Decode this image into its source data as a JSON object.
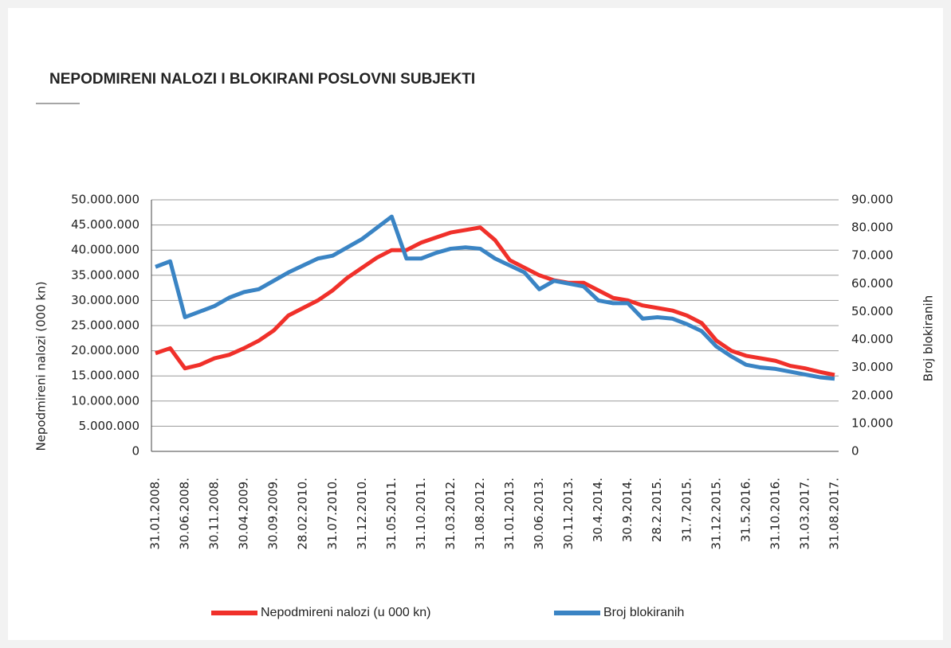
{
  "chart_data": {
    "type": "line",
    "title": "NEPODMIRENI NALOZI I BLOKIRANI POSLOVNI SUBJEKTI",
    "y_label": "Nepodmireni nalozi (000 kn)",
    "y2_label": "Broj blokiranih",
    "categories": [
      "31.01.2008.",
      null,
      "30.06.2008.",
      null,
      "30.11.2008.",
      null,
      "30.04.2009.",
      null,
      "30.09.2009.",
      null,
      "28.02.2010.",
      null,
      "31.07.2010.",
      null,
      "31.12.2010.",
      null,
      "31.05.2011.",
      null,
      "31.10.2011.",
      null,
      "31.03.2012.",
      null,
      "31.08.2012.",
      null,
      "31.01.2013.",
      null,
      "30.06.2013.",
      null,
      "30.11.2013.",
      null,
      "30.4.2014.",
      null,
      "30.9.2014.",
      null,
      "28.2.2015.",
      null,
      "31.7.2015.",
      null,
      "31.12.2015.",
      null,
      "31.5.2016.",
      null,
      "31.10.2016.",
      null,
      "31.03.2017.",
      null,
      "31.08.2017."
    ],
    "series": [
      {
        "name": "Nepodmireni nalozi (u 000 kn)",
        "color": "#f0302a",
        "axis": "y",
        "values": [
          19500000,
          20500000,
          16500000,
          17200000,
          18500000,
          19200000,
          20500000,
          22000000,
          24000000,
          27000000,
          28500000,
          30000000,
          32000000,
          34500000,
          36500000,
          38500000,
          40000000,
          40000000,
          41500000,
          42500000,
          43500000,
          44000000,
          44500000,
          42000000,
          38000000,
          36500000,
          35000000,
          34000000,
          33500000,
          33500000,
          32000000,
          30500000,
          30000000,
          29000000,
          28500000,
          28000000,
          27000000,
          25500000,
          22000000,
          20000000,
          19000000,
          18500000,
          18000000,
          17000000,
          16500000,
          15800000,
          15200000
        ]
      },
      {
        "name": "Broj blokiranih",
        "color": "#3a84c4",
        "axis": "y2",
        "values": [
          66000,
          68000,
          48000,
          50000,
          52000,
          55000,
          57000,
          58000,
          61000,
          64000,
          66500,
          69000,
          70000,
          73000,
          76000,
          80000,
          84000,
          69000,
          69000,
          71000,
          72500,
          73000,
          72500,
          69000,
          66500,
          64000,
          58000,
          61000,
          60000,
          59000,
          54000,
          53000,
          53000,
          47500,
          48000,
          47500,
          45500,
          43000,
          37500,
          34000,
          31000,
          30000,
          29500,
          28500,
          27500,
          26500,
          26000
        ]
      }
    ],
    "ylim": [
      0,
      50000000
    ],
    "yticks": [
      0,
      {
        "value": 5000000,
        "label": "5.000.000"
      },
      {
        "value": 10000000,
        "label": "10.000.000"
      },
      {
        "value": 15000000,
        "label": "15.000.000"
      },
      {
        "value": 20000000,
        "label": "20.000.000"
      },
      {
        "value": 25000000,
        "label": "25.000.000"
      },
      {
        "value": 30000000,
        "label": "30.000.000"
      },
      {
        "value": 35000000,
        "label": "35.000.000"
      },
      {
        "value": 40000000,
        "label": "40.000.000"
      },
      {
        "value": 45000000,
        "label": "45.000.000"
      },
      {
        "value": 50000000,
        "label": "50.000.000"
      }
    ],
    "y2lim": [
      0,
      90000
    ],
    "y2ticks": [
      0,
      {
        "value": 10000,
        "label": "10.000"
      },
      {
        "value": 20000,
        "label": "20.000"
      },
      {
        "value": 30000,
        "label": "30.000"
      },
      {
        "value": 40000,
        "label": "40.000"
      },
      {
        "value": 50000,
        "label": "50.000"
      },
      {
        "value": 60000,
        "label": "60.000"
      },
      {
        "value": 70000,
        "label": "70.000"
      },
      {
        "value": 80000,
        "label": "80.000"
      },
      {
        "value": 90000,
        "label": "90.000"
      }
    ],
    "grid": true,
    "legend": "bottom"
  }
}
